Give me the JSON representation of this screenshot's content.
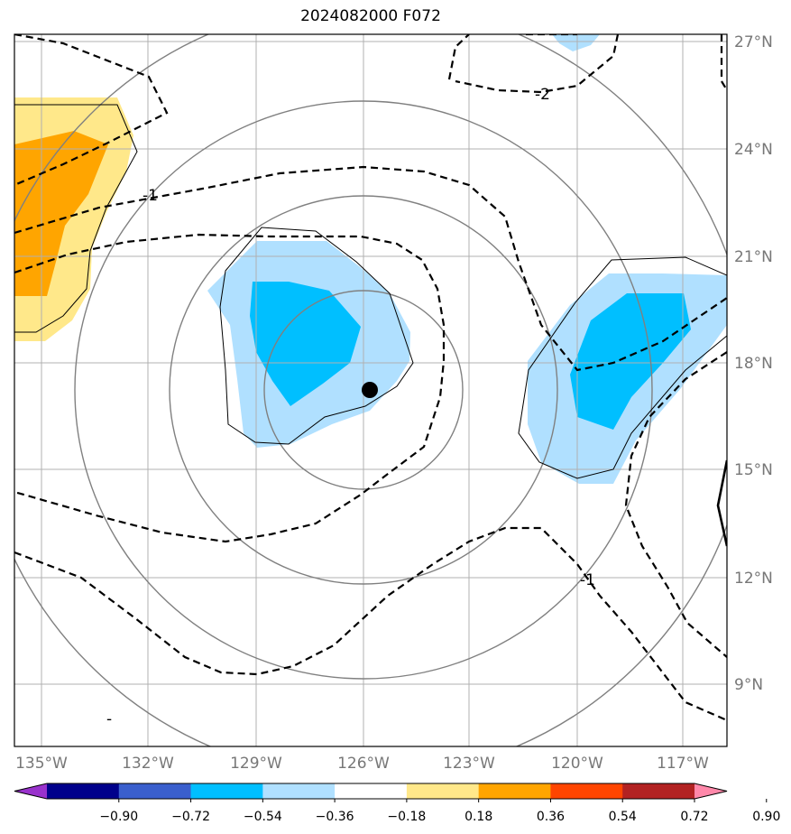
{
  "title": "2024082000 F072",
  "axes": {
    "lon_ticks": [
      "135°W",
      "132°W",
      "129°W",
      "126°W",
      "123°W",
      "120°W",
      "117°W"
    ],
    "lat_ticks": [
      "27°N",
      "24°N",
      "21°N",
      "18°N",
      "15°N",
      "12°N",
      "9°N"
    ]
  },
  "colorbar": {
    "labels": [
      "−0.90",
      "−0.72",
      "−0.54",
      "−0.36",
      "−0.18",
      "0.18",
      "0.36",
      "0.54",
      "0.72",
      "0.90"
    ],
    "colors": [
      "#9932cc",
      "#00008b",
      "#3a5fcd",
      "#00bfff",
      "#b0e0ff",
      "#ffffff",
      "#ffe88a",
      "#ffa500",
      "#ff4500",
      "#b22222",
      "#ff88aa"
    ]
  },
  "contour_labels": {
    "minus_two": "-2",
    "minus_one_a": "-1",
    "minus_one_b": "-1",
    "dash": "-"
  },
  "colors": {
    "light_blue": "#b0e0ff",
    "deep_sky_blue": "#00bfff",
    "light_yellow": "#ffe88a",
    "orange": "#ffa500",
    "grid": "#b0b0b0",
    "circle": "#808080"
  },
  "marker": "storm-center"
}
